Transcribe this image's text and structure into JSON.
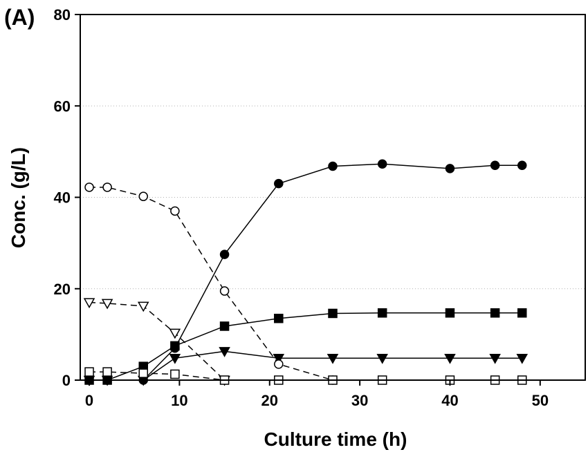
{
  "chart_data": {
    "type": "line",
    "panel_label": "(A)",
    "xlabel": "Culture time (h)",
    "ylabel": "Conc. (g/L)",
    "xlim": [
      -1,
      55
    ],
    "ylim": [
      0,
      80
    ],
    "x_ticks": [
      0,
      10,
      20,
      30,
      40,
      50
    ],
    "y_ticks": [
      0,
      20,
      40,
      60,
      80
    ],
    "grid": "horizontal dotted",
    "legend": "none",
    "series": [
      {
        "marker": "filled-circle",
        "line": "solid",
        "color": "#000000",
        "x": [
          0,
          2,
          6,
          9.5,
          15,
          21,
          27,
          32.5,
          40,
          45,
          48
        ],
        "y": [
          0,
          0,
          0,
          7,
          27.5,
          43,
          46.8,
          47.3,
          46.3,
          47,
          47
        ]
      },
      {
        "marker": "filled-square",
        "line": "solid",
        "color": "#000000",
        "x": [
          0,
          2,
          6,
          9.5,
          15,
          21,
          27,
          32.5,
          40,
          45,
          48
        ],
        "y": [
          0,
          0,
          3,
          7.5,
          11.8,
          13.5,
          14.6,
          14.7,
          14.7,
          14.7,
          14.7
        ]
      },
      {
        "marker": "filled-triangle-down",
        "line": "solid",
        "color": "#000000",
        "x": [
          0,
          2,
          6,
          9.5,
          15,
          21,
          27,
          32.5,
          40,
          45,
          48
        ],
        "y": [
          0,
          0,
          0,
          4.8,
          6.3,
          4.8,
          4.8,
          4.8,
          4.8,
          4.8,
          4.8
        ]
      },
      {
        "marker": "open-circle",
        "line": "dashed",
        "color": "#000000",
        "x": [
          0,
          2,
          6,
          9.5,
          15,
          21,
          27
        ],
        "y": [
          42.2,
          42.2,
          40.2,
          37,
          19.5,
          3.5,
          0
        ]
      },
      {
        "marker": "open-triangle-down",
        "line": "dashed",
        "color": "#000000",
        "x": [
          0,
          2,
          6,
          9.5,
          15
        ],
        "y": [
          17,
          16.8,
          16.2,
          10.3,
          0
        ]
      },
      {
        "marker": "open-square",
        "line": "dashed",
        "color": "#000000",
        "x": [
          0,
          2,
          6,
          9.5,
          15,
          21,
          27,
          32.5,
          40,
          45,
          48
        ],
        "y": [
          1.8,
          1.8,
          1.5,
          1.3,
          0,
          0,
          0,
          0,
          0,
          0,
          0
        ]
      }
    ]
  }
}
